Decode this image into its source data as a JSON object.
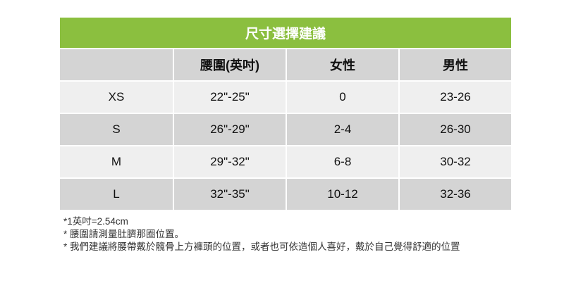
{
  "title": "尺寸選擇建議",
  "headers": [
    "",
    "腰圍(英吋)",
    "女性",
    "男性"
  ],
  "rows": [
    [
      "XS",
      "22\"-25\"",
      "0",
      "23-26"
    ],
    [
      "S",
      "26\"-29\"",
      "2-4",
      "26-30"
    ],
    [
      "M",
      "29\"-32\"",
      "6-8",
      "30-32"
    ],
    [
      "L",
      "32\"-35\"",
      "10-12",
      "32-36"
    ]
  ],
  "notes": [
    "*1英吋=2.54cm",
    "* 腰圍請測量肚臍那圈位置。",
    "* 我們建議將腰帶戴於髖骨上方褲頭的位置，或者也可依造個人喜好，戴於自己覺得舒適的位置"
  ],
  "colors": {
    "title_bg": "#8bbf3f",
    "header_bg": "#d4d4d4",
    "row_light": "#efefef",
    "row_dark": "#d4d4d4"
  }
}
